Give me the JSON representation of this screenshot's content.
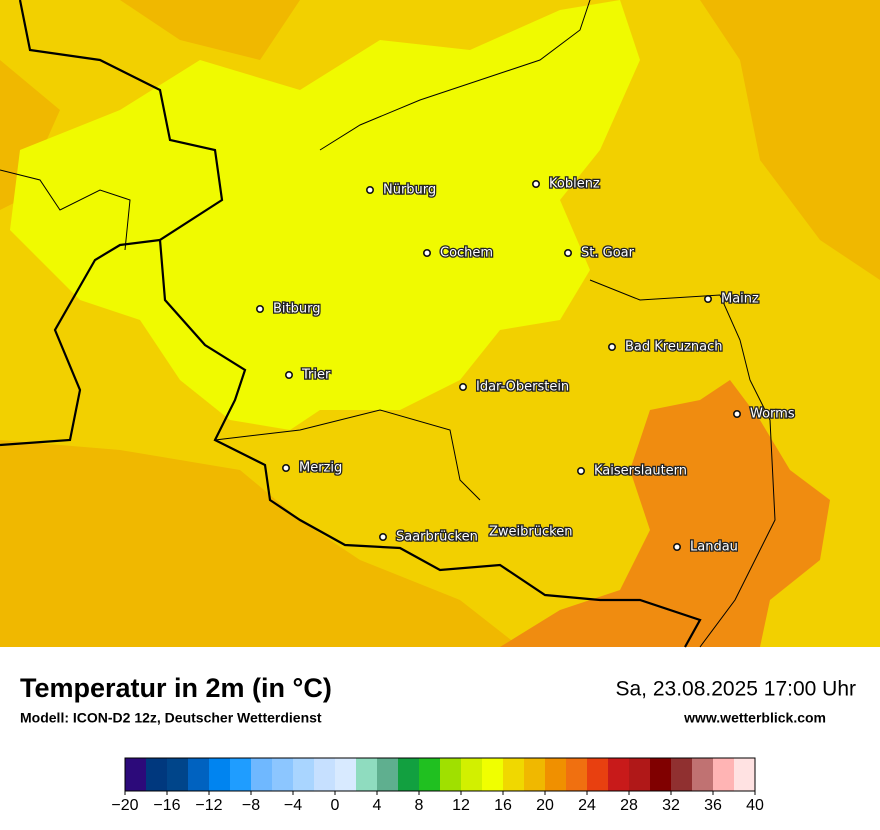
{
  "map": {
    "cities": [
      "Nürburg",
      "Koblenz",
      "Cochem",
      "St. Goar",
      "Mainz",
      "Bitburg",
      "Bad Kreuznach",
      "Trier",
      "Idar-Oberstein",
      "Worms",
      "Merzig",
      "Kaiserslautern",
      "Saarbrücken",
      "Zweibrücken",
      "Landau"
    ]
  },
  "footer": {
    "title": "Temperatur in 2m (in °C)",
    "subtitle": "Modell: ICON-D2 12z, Deutscher Wetterdienst",
    "date": "Sa, 23.08.2025 17:00 Uhr",
    "website": "www.wetterblick.com"
  },
  "colorbar": {
    "range": [
      -20,
      40
    ],
    "colors": [
      "#2c0a7a",
      "#00387e",
      "#00458a",
      "#0062c0",
      "#0084f0",
      "#1f9dff",
      "#6fb8ff",
      "#8cc6ff",
      "#a9d5ff",
      "#c6e0ff",
      "#d8eaff",
      "#8fdcbf",
      "#5faf8f",
      "#12a040",
      "#20c020",
      "#a0e000",
      "#d2f000",
      "#f0ff00",
      "#f0d800",
      "#f0b800",
      "#f09000",
      "#f07010",
      "#e84010",
      "#c81a1a",
      "#b01818",
      "#800000",
      "#903030",
      "#c07272",
      "#ffb4b4",
      "#ffe2e2"
    ],
    "ticks": [
      {
        "value": -20,
        "label": "−20"
      },
      {
        "value": -16,
        "label": "−16"
      },
      {
        "value": -12,
        "label": "−12"
      },
      {
        "value": -8,
        "label": "−8"
      },
      {
        "value": -4,
        "label": "−4"
      },
      0,
      4,
      8,
      12,
      16,
      20,
      24,
      28,
      32,
      36,
      40
    ]
  }
}
